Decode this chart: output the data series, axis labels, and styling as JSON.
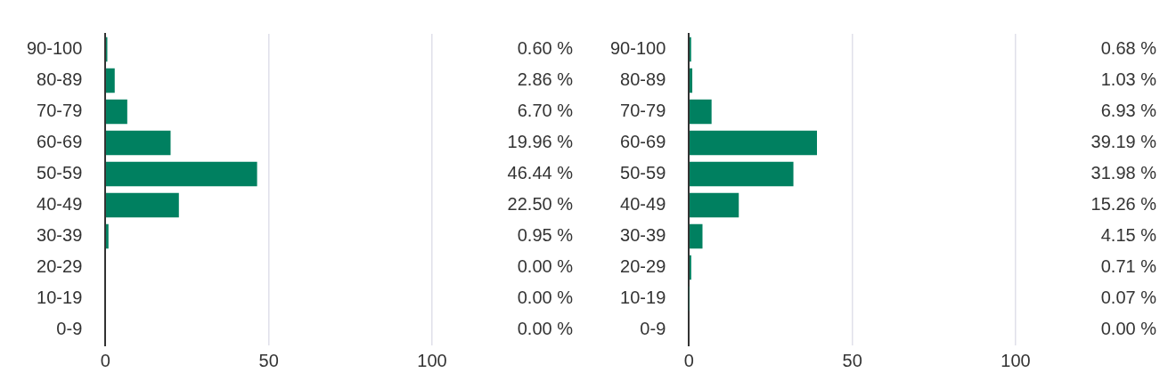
{
  "chart_data": [
    {
      "type": "bar",
      "orientation": "horizontal",
      "categories": [
        "90-100",
        "80-89",
        "70-79",
        "60-69",
        "50-59",
        "40-49",
        "30-39",
        "20-29",
        "10-19",
        "0-9"
      ],
      "values": [
        0.6,
        2.86,
        6.7,
        19.96,
        46.44,
        22.5,
        0.95,
        0.0,
        0.0,
        0.0
      ],
      "value_labels": [
        "0.60 %",
        "2.86 %",
        "6.70 %",
        "19.96 %",
        "46.44 %",
        "22.50 %",
        "0.95 %",
        "0.00 %",
        "0.00 %",
        "0.00 %"
      ],
      "color": "#008060",
      "xlim": [
        0,
        100
      ],
      "xticks": [
        0,
        50,
        100
      ],
      "grid": "x"
    },
    {
      "type": "bar",
      "orientation": "horizontal",
      "categories": [
        "90-100",
        "80-89",
        "70-79",
        "60-69",
        "50-59",
        "40-49",
        "30-39",
        "20-29",
        "10-19",
        "0-9"
      ],
      "values": [
        0.68,
        1.03,
        6.93,
        39.19,
        31.98,
        15.26,
        4.15,
        0.71,
        0.07,
        0.0
      ],
      "value_labels": [
        "0.68 %",
        "1.03 %",
        "6.93 %",
        "39.19 %",
        "31.98 %",
        "15.26 %",
        "4.15 %",
        "0.71 %",
        "0.07 %",
        "0.00 %"
      ],
      "color": "#008060",
      "xlim": [
        0,
        100
      ],
      "xticks": [
        0,
        50,
        100
      ],
      "grid": "x"
    }
  ]
}
